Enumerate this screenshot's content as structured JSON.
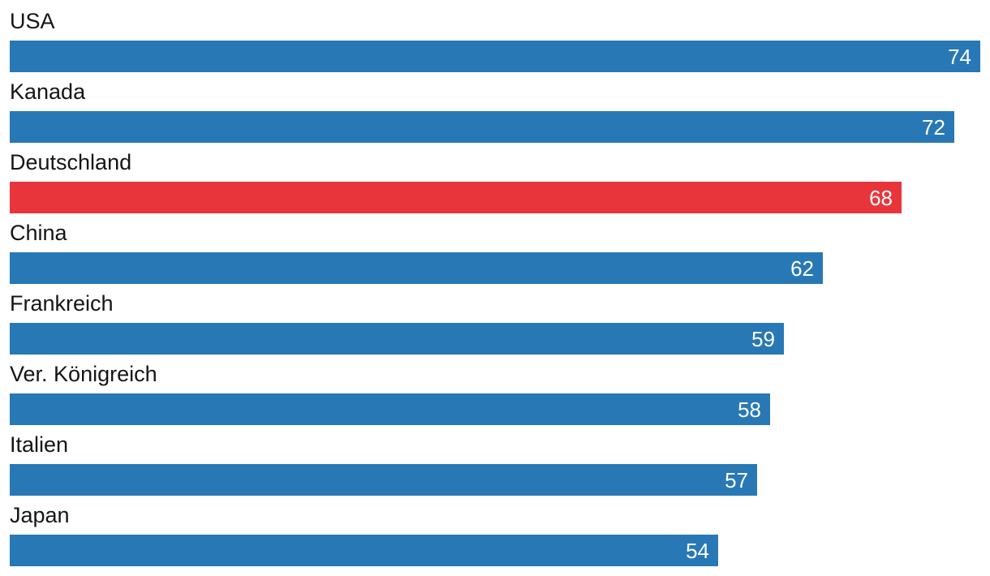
{
  "chart_data": {
    "type": "bar",
    "orientation": "horizontal",
    "title": "",
    "xlabel": "",
    "ylabel": "",
    "categories": [
      "USA",
      "Kanada",
      "Deutschland",
      "China",
      "Frankreich",
      "Ver. Königreich",
      "Italien",
      "Japan"
    ],
    "values": [
      74,
      72,
      68,
      62,
      59,
      58,
      57,
      54
    ],
    "value_labels_shown": true,
    "highlight_category": "Deutschland",
    "colors": {
      "bar_default": "#2878b5",
      "bar_highlight": "#e8353c",
      "value_label": "#ffffff",
      "category_label": "#151515",
      "background": "#ffffff"
    },
    "xlim": [
      0,
      74
    ],
    "grid": false,
    "legend": false,
    "axes_shown": false
  }
}
